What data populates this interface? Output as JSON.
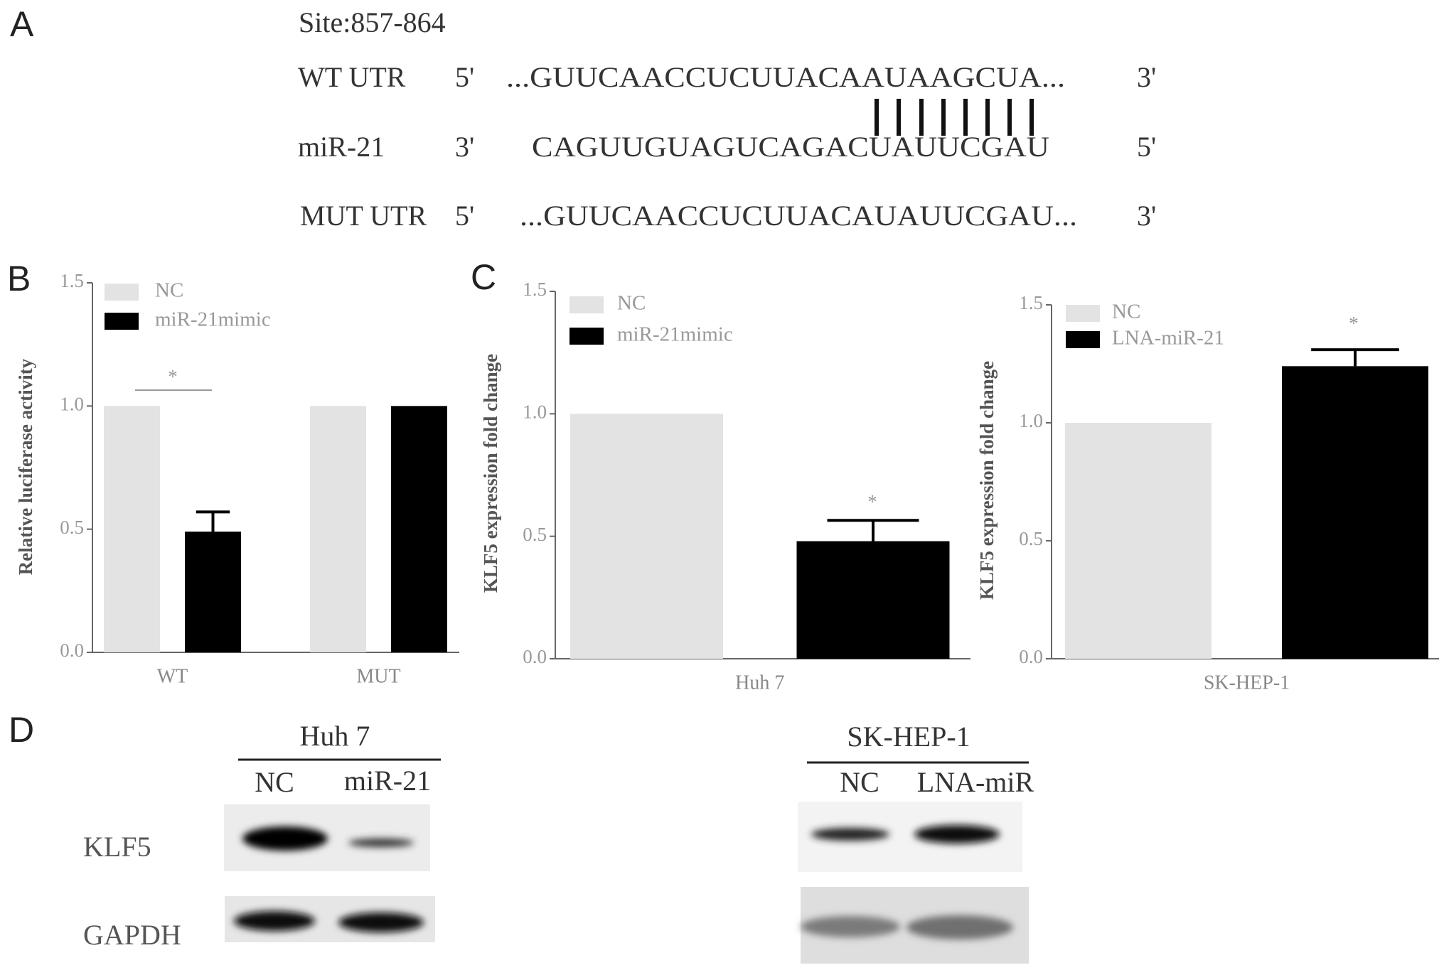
{
  "panels": [
    "A",
    "B",
    "C",
    "D"
  ],
  "sequence": {
    "title": "Site:857-864",
    "rows": [
      {
        "name": "WT UTR",
        "left": "5'",
        "seq": "...GUUCAACCUCUUACAAUAAGCUA...",
        "right": "3'"
      },
      {
        "name": "miR-21",
        "left": "3'",
        "seq": "CAGUUGUAGUCAGACUAUUCGAU",
        "right": "5'"
      },
      {
        "name": "MUT UTR",
        "left": "5'",
        "seq": "...GUUCAACCUCUUACAUAUUCGAU...",
        "right": "3'"
      }
    ]
  },
  "chart_data": [
    {
      "type": "bar",
      "y_label": "Relative luciferase activity",
      "categories": [
        "WT",
        "MUT"
      ],
      "series": [
        {
          "name": "NC",
          "color": "#e3e3e3",
          "values": [
            1.0,
            1.0
          ]
        },
        {
          "name": "miR-21mimic",
          "color": "#000000",
          "values": [
            0.49,
            1.0
          ],
          "errors": [
            0.08,
            null
          ]
        }
      ],
      "ylim": [
        0,
        1.5
      ],
      "yticks": [
        {
          "value": 0,
          "label": "0.0"
        },
        0.5,
        {
          "value": 1,
          "label": "1.0"
        },
        1.5
      ],
      "annotation": "*"
    },
    {
      "type": "bar",
      "y_label": "KLF5 expression fold change",
      "categories": [
        "Huh 7"
      ],
      "series": [
        {
          "name": "NC",
          "color": "#e3e3e3",
          "values": [
            1.0
          ]
        },
        {
          "name": "miR-21mimic",
          "color": "#000000",
          "values": [
            0.48
          ],
          "errors": [
            0.085
          ]
        }
      ],
      "ylim": [
        0,
        1.5
      ],
      "yticks": [
        {
          "value": 0,
          "label": "0.0"
        },
        0.5,
        {
          "value": 1,
          "label": "1.0"
        },
        1.5
      ],
      "annotation": "*"
    },
    {
      "type": "bar",
      "y_label": "KLF5 expression fold change",
      "categories": [
        "SK-HEP-1"
      ],
      "series": [
        {
          "name": "NC",
          "color": "#e3e3e3",
          "values": [
            1.0
          ]
        },
        {
          "name": "LNA-miR-21",
          "color": "#000000",
          "values": [
            1.24
          ],
          "errors": [
            0.07
          ]
        }
      ],
      "ylim": [
        0,
        1.5
      ],
      "yticks": [
        {
          "value": 0,
          "label": "0.0"
        },
        0.5,
        {
          "value": 1,
          "label": "1.0"
        },
        1.5
      ],
      "annotation": "*"
    }
  ],
  "blots": {
    "row_labels": [
      "KLF5",
      "GAPDH"
    ],
    "groups": [
      {
        "cell_line": "Huh 7",
        "lanes": [
          "NC",
          "miR-21"
        ]
      },
      {
        "cell_line": "SK-HEP-1",
        "lanes": [
          "NC",
          "LNA-miR"
        ]
      }
    ]
  }
}
